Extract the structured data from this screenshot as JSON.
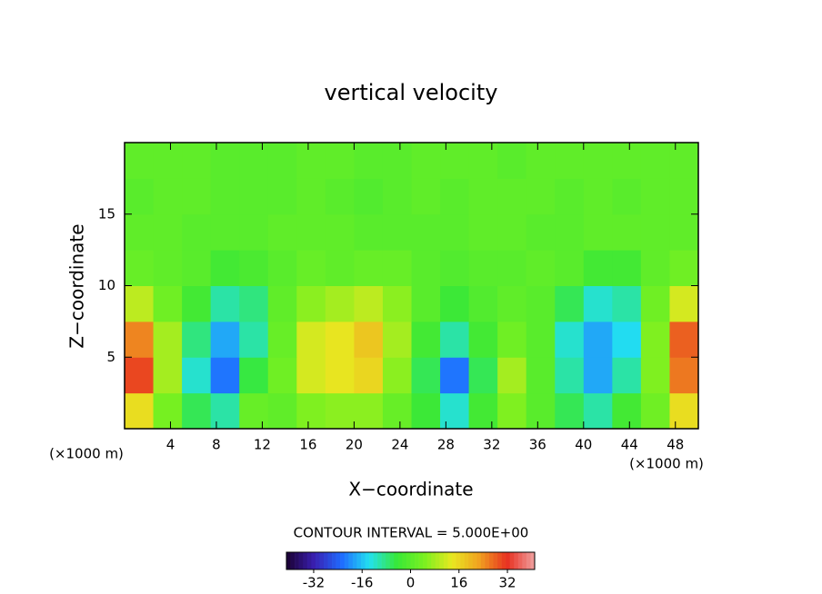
{
  "chart_data": {
    "type": "contour",
    "title": "vertical velocity",
    "x_label": "X−coordinate",
    "y_label": "Z−coordinate",
    "x_unit": "(×1000 m)",
    "y_unit": "(×1000 m)",
    "contour_label": "CONTOUR INTERVAL = 5.000E+00",
    "xlim": [
      0,
      50
    ],
    "ylim": [
      0,
      20
    ],
    "xticks": [
      4,
      8,
      12,
      16,
      20,
      24,
      28,
      32,
      36,
      40,
      44,
      48
    ],
    "yticks": [
      5,
      10,
      15
    ],
    "x": [
      1.25,
      3.75,
      6.25,
      8.75,
      11.25,
      13.75,
      16.25,
      18.75,
      21.25,
      23.75,
      26.25,
      28.75,
      31.25,
      33.75,
      36.25,
      38.75,
      41.25,
      43.75,
      46.25,
      48.75
    ],
    "y": [
      1.25,
      3.75,
      6.25,
      8.75,
      11.25,
      13.75,
      16.25,
      18.75
    ],
    "z": [
      [
        15,
        4,
        -6,
        -10,
        2,
        1,
        5,
        6,
        6,
        2,
        -4,
        -12,
        -3,
        5,
        0,
        -6,
        -10,
        -3,
        3,
        15
      ],
      [
        30,
        8,
        -12,
        -22,
        -5,
        3,
        12,
        14,
        16,
        6,
        -6,
        -22,
        -6,
        8,
        0,
        -10,
        -18,
        -10,
        5,
        26
      ],
      [
        25,
        8,
        -8,
        -18,
        -10,
        2,
        12,
        14,
        18,
        8,
        -3,
        -10,
        -3,
        3,
        0,
        -12,
        -18,
        -14,
        5,
        28
      ],
      [
        10,
        3,
        -3,
        -10,
        -8,
        1,
        6,
        8,
        10,
        6,
        0,
        -4,
        -1,
        1,
        0,
        -6,
        -12,
        -10,
        3,
        12
      ],
      [
        2,
        1,
        0,
        -3,
        -2,
        0,
        2,
        1,
        2,
        2,
        0,
        -1,
        0,
        0,
        1,
        0,
        -3,
        -3,
        1,
        3
      ],
      [
        1,
        1,
        0,
        0,
        0,
        1,
        1,
        1,
        0,
        0,
        0,
        0,
        1,
        1,
        0,
        0,
        1,
        1,
        1,
        1
      ],
      [
        0,
        1,
        1,
        0,
        0,
        0,
        1,
        0,
        -1,
        0,
        1,
        0,
        1,
        1,
        1,
        0,
        1,
        0,
        1,
        1
      ],
      [
        1,
        1,
        1,
        0,
        0,
        0,
        1,
        1,
        0,
        0,
        1,
        1,
        1,
        0,
        1,
        1,
        1,
        1,
        1,
        1
      ]
    ],
    "clim": [
      -41,
      41
    ],
    "cticks": [
      -32,
      -16,
      0,
      16,
      32
    ],
    "colorscale": [
      "#1a0030",
      "#3a1fb0",
      "#1f6bff",
      "#22e0f0",
      "#38e838",
      "#7af020",
      "#e8e820",
      "#f0a020",
      "#e83020",
      "#f0a0a0"
    ]
  }
}
